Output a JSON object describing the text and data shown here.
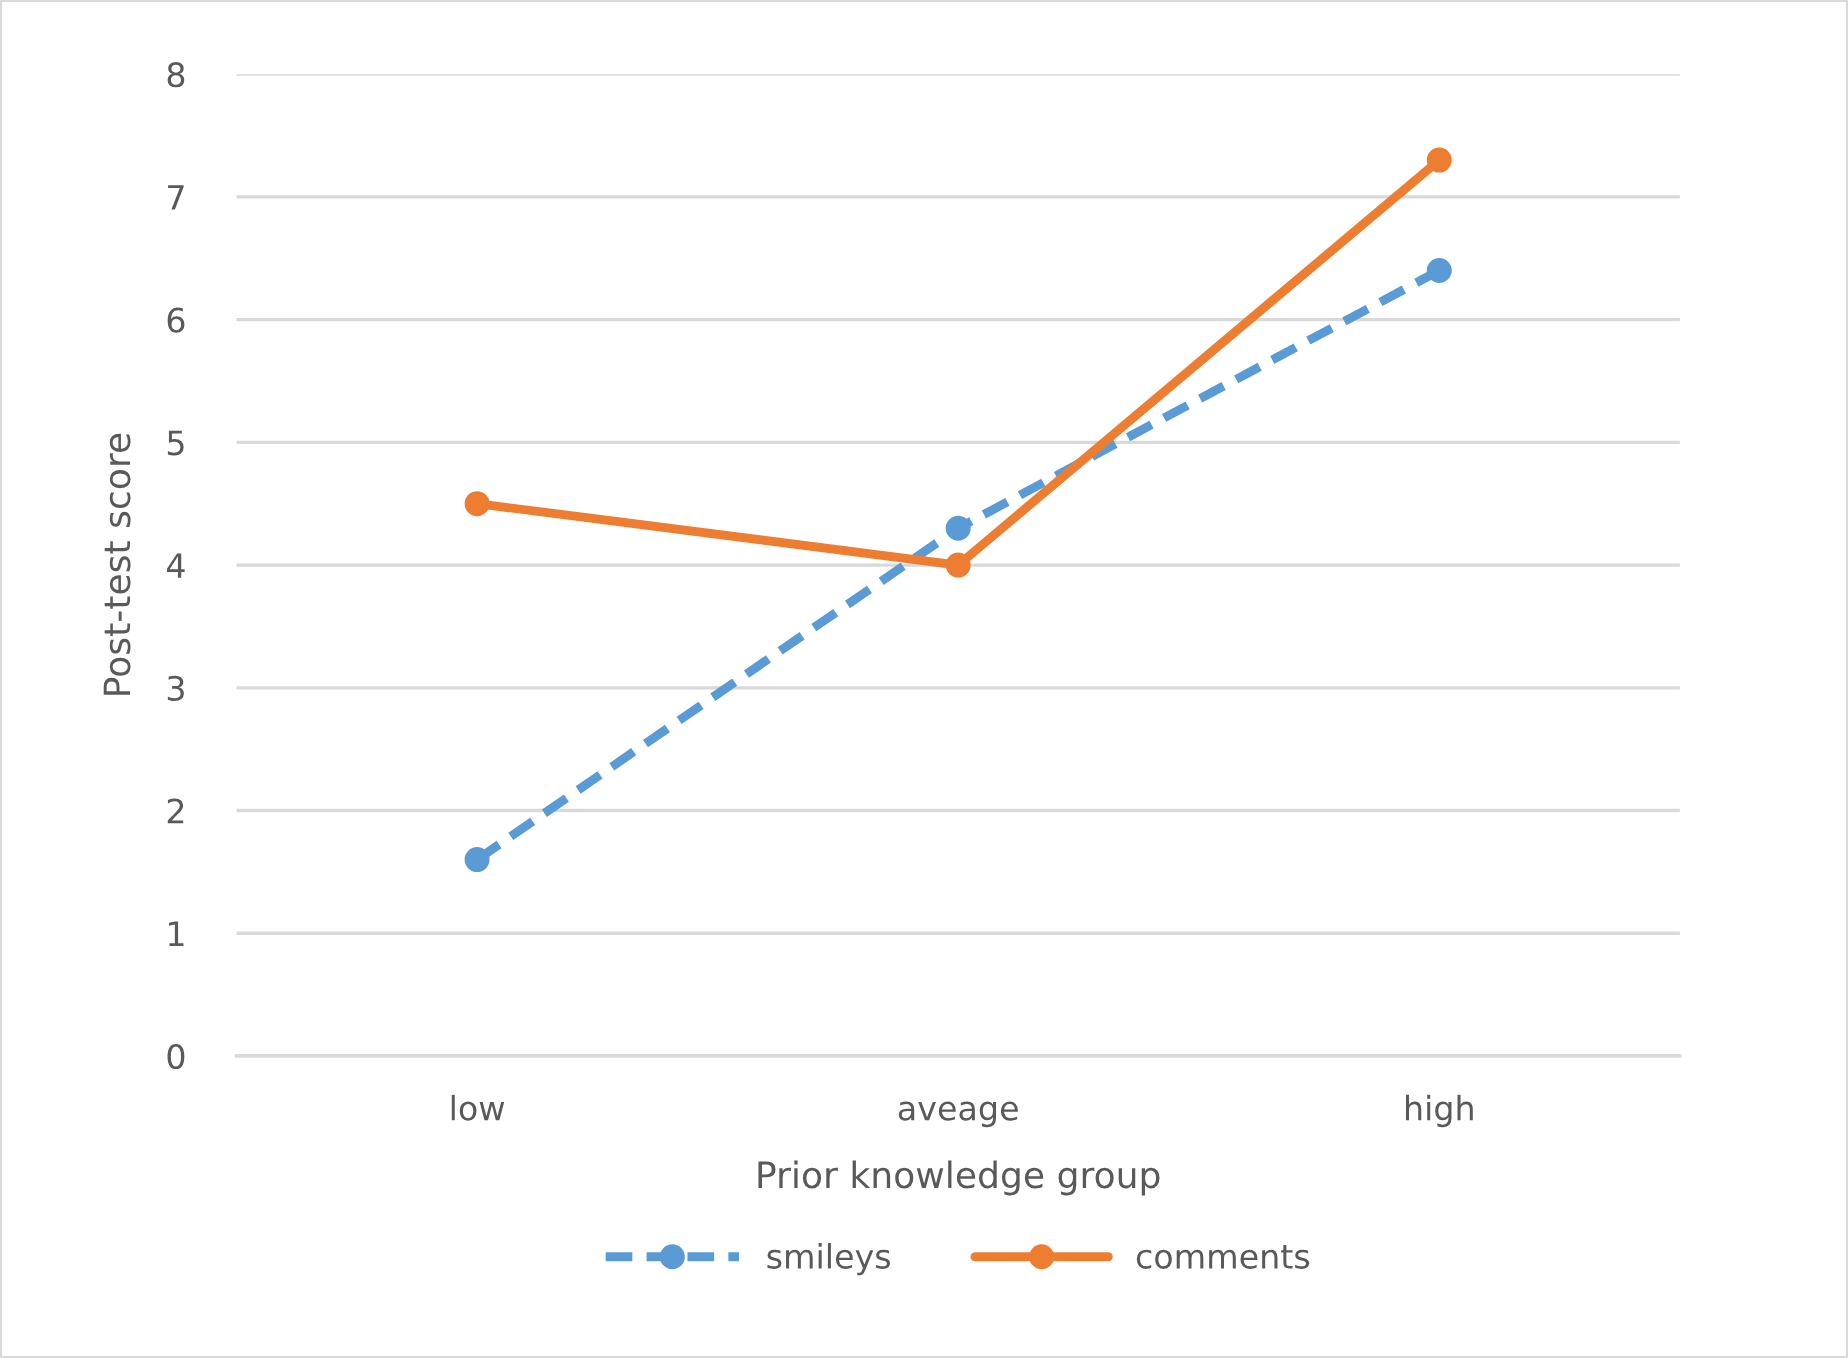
{
  "chart_data": {
    "type": "line",
    "xlabel": "Prior knowledge group",
    "ylabel": "Post-test score",
    "categories": [
      "low",
      "aveage",
      "high"
    ],
    "series": [
      {
        "name": "smileys",
        "color": "#5b9bd5",
        "values": [
          1.6,
          4.3,
          6.4
        ],
        "line_style": "dashed"
      },
      {
        "name": "comments",
        "color": "#ed7d31",
        "values": [
          4.5,
          4.0,
          7.3
        ],
        "line_style": "solid"
      }
    ],
    "ylim": [
      0,
      8
    ],
    "yticks": [
      0,
      1,
      2,
      3,
      4,
      5,
      6,
      7,
      8
    ],
    "grid": "y",
    "legend": "bottom",
    "marker": "circle"
  }
}
